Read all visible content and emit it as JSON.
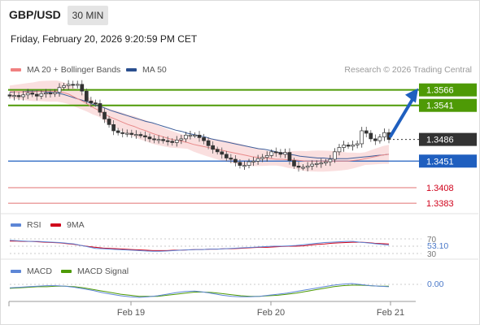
{
  "header": {
    "symbol": "GBP/USD",
    "timeframe": "30 MIN",
    "datetime": "Friday, February 20, 2026 9:20:59 PM CET"
  },
  "price_legend": {
    "ma20": "MA 20 + Bollinger Bands",
    "ma50": "MA 50",
    "copyright": "Research © 2026 Trading Central"
  },
  "rsi_legend": {
    "rsi": "RSI",
    "ma": "9MA"
  },
  "macd_legend": {
    "macd": "MACD",
    "signal": "MACD Signal"
  },
  "colors": {
    "green": "#4e9a06",
    "blue": "#1f5fbf",
    "red": "#d0021b",
    "dark": "#333333",
    "band": "#f6c9c9",
    "ma20": "#e88a8a",
    "ma50": "#3e5e9a",
    "rsi": "#5d86d6",
    "rsi_ma": "#d0021b",
    "macd": "#5d86d6",
    "macd_signal": "#4e9a06"
  },
  "chart_data": [
    {
      "type": "candlestick",
      "title": "GBP/USD",
      "timeframe": "30 MIN",
      "x_ticks": [
        "Feb 19",
        "Feb 20",
        "Feb 21"
      ],
      "ylim": [
        1.337,
        1.358
      ],
      "price_levels": [
        {
          "value": 1.3566,
          "label": "1.3566",
          "kind": "resistance"
        },
        {
          "value": 1.3541,
          "label": "1.3541",
          "kind": "resistance"
        },
        {
          "value": 1.3486,
          "label": "1.3486",
          "kind": "current"
        },
        {
          "value": 1.3451,
          "label": "1.3451",
          "kind": "pivot"
        },
        {
          "value": 1.3408,
          "label": "1.3408",
          "kind": "support"
        },
        {
          "value": 1.3383,
          "label": "1.3383",
          "kind": "support"
        }
      ],
      "series": [
        {
          "name": "Price",
          "values": [
            1.3556,
            1.3557,
            1.3555,
            1.3558,
            1.3561,
            1.3559,
            1.3556,
            1.356,
            1.3561,
            1.356,
            1.3562,
            1.357,
            1.3573,
            1.3575,
            1.3574,
            1.3575,
            1.3564,
            1.3548,
            1.3545,
            1.3544,
            1.353,
            1.3519,
            1.351,
            1.35,
            1.3497,
            1.3496,
            1.3496,
            1.3494,
            1.3494,
            1.3492,
            1.349,
            1.3487,
            1.3486,
            1.3486,
            1.3484,
            1.3483,
            1.3481,
            1.3485,
            1.3487,
            1.3493,
            1.3493,
            1.3493,
            1.3489,
            1.3484,
            1.3476,
            1.347,
            1.3466,
            1.3462,
            1.3456,
            1.3454,
            1.3449,
            1.3444,
            1.3444,
            1.345,
            1.3451,
            1.3455,
            1.3457,
            1.346,
            1.3466,
            1.3465,
            1.3462,
            1.3465,
            1.3452,
            1.3443,
            1.3441,
            1.3441,
            1.3443,
            1.3446,
            1.3447,
            1.3448,
            1.345,
            1.3454,
            1.3466,
            1.3473,
            1.3477,
            1.3475,
            1.3477,
            1.3479,
            1.35,
            1.3496,
            1.3487,
            1.3484,
            1.349,
            1.3497,
            1.3486
          ]
        },
        {
          "name": "MA 20",
          "values": [
            1.3563,
            1.3563,
            1.3563,
            1.3563,
            1.3563,
            1.3564,
            1.3564,
            1.3564,
            1.3564,
            1.3562,
            1.3559,
            1.3554,
            1.3549,
            1.3544,
            1.3538,
            1.3533,
            1.3527,
            1.3522,
            1.3518,
            1.3514,
            1.351,
            1.3507,
            1.3503,
            1.35,
            1.3496,
            1.3493,
            1.349,
            1.3487,
            1.3485,
            1.3483,
            1.3481,
            1.3478,
            1.3476,
            1.3474,
            1.3472,
            1.347,
            1.3468,
            1.3466,
            1.3464,
            1.3462,
            1.346,
            1.3458,
            1.3457,
            1.3456,
            1.3455,
            1.3454,
            1.3454,
            1.3453,
            1.3453,
            1.3452,
            1.3451,
            1.3451,
            1.3451,
            1.3451,
            1.3451,
            1.3451,
            1.3451,
            1.3451,
            1.3452,
            1.3453,
            1.3455,
            1.3457,
            1.3459,
            1.3461,
            1.3462
          ]
        },
        {
          "name": "MA 50",
          "values": [
            1.3562,
            1.3563,
            1.3563,
            1.3564,
            1.3564,
            1.3564,
            1.3563,
            1.3562,
            1.3561,
            1.3559,
            1.3556,
            1.3553,
            1.355,
            1.3547,
            1.3543,
            1.354,
            1.3537,
            1.3533,
            1.353,
            1.3527,
            1.3524,
            1.3521,
            1.3518,
            1.3515,
            1.3513,
            1.351,
            1.3507,
            1.3504,
            1.3501,
            1.3499,
            1.3496,
            1.3494,
            1.3492,
            1.349,
            1.3487,
            1.3485,
            1.3483,
            1.3481,
            1.3479,
            1.3477,
            1.3475,
            1.3473,
            1.3471,
            1.347,
            1.3468,
            1.3466,
            1.3464,
            1.3462,
            1.3461,
            1.3459,
            1.3458,
            1.3457,
            1.3456,
            1.3456,
            1.3455,
            1.3455,
            1.3455,
            1.3455,
            1.3456,
            1.3457,
            1.3458,
            1.3459,
            1.346,
            1.3461,
            1.3462
          ]
        }
      ]
    },
    {
      "type": "line",
      "title": "RSI",
      "ylim": [
        30,
        70
      ],
      "y_ticks": [
        "70",
        "30"
      ],
      "current_value": "53.10",
      "series": [
        {
          "name": "RSI",
          "values": [
            66,
            65,
            64,
            63,
            63,
            62,
            61,
            60,
            58,
            56,
            52,
            48,
            44,
            43,
            42,
            41,
            40,
            39,
            38,
            37,
            36,
            36,
            37,
            38,
            39,
            40,
            41,
            41,
            42,
            42,
            43,
            44,
            45,
            46,
            47,
            48,
            49,
            50,
            50,
            51,
            52,
            54,
            56,
            58,
            60,
            61,
            62,
            63,
            63,
            61,
            59,
            57,
            55,
            53.1
          ]
        },
        {
          "name": "9MA",
          "values": [
            64,
            64,
            63,
            63,
            62,
            61,
            60,
            59,
            57,
            55,
            52,
            49,
            47,
            45,
            44,
            43,
            42,
            41,
            40,
            39,
            38,
            38,
            38,
            39,
            39,
            40,
            41,
            41,
            42,
            42,
            43,
            43,
            44,
            45,
            46,
            47,
            47,
            48,
            49,
            50,
            50,
            51,
            53,
            55,
            56,
            58,
            59,
            60,
            61,
            61,
            60,
            58,
            57,
            56
          ]
        }
      ]
    },
    {
      "type": "line",
      "title": "MACD",
      "current_value": "0.00",
      "series": [
        {
          "name": "MACD",
          "values": [
            0.0006,
            0.0007,
            0.0008,
            0.0009,
            0.001,
            0.001,
            0.0009,
            0.0007,
            0.0004,
            0.0001,
            -0.0003,
            -0.0006,
            -0.0009,
            -0.0011,
            -0.0012,
            -0.0011,
            -0.0009,
            -0.0006,
            -0.0003,
            -0.0001,
            0.0,
            -0.0002,
            -0.0005,
            -0.0008,
            -0.001,
            -0.0011,
            -0.0011,
            -0.001,
            -0.0008,
            -0.0006,
            -0.0004,
            -0.0001,
            0.0002,
            0.0005,
            0.0008,
            0.0011,
            0.0013,
            0.0014,
            0.0012,
            0.001,
            0.0009,
            0.0008
          ]
        },
        {
          "name": "MACD Signal",
          "values": [
            0.0005,
            0.0006,
            0.0007,
            0.0008,
            0.0008,
            0.0009,
            0.0009,
            0.0008,
            0.0006,
            0.0003,
            0.0,
            -0.0003,
            -0.0006,
            -0.0008,
            -0.001,
            -0.001,
            -0.001,
            -0.0008,
            -0.0006,
            -0.0004,
            -0.0002,
            -0.0002,
            -0.0003,
            -0.0005,
            -0.0007,
            -0.0009,
            -0.001,
            -0.001,
            -0.0009,
            -0.0008,
            -0.0006,
            -0.0004,
            -0.0001,
            0.0002,
            0.0005,
            0.0008,
            0.001,
            0.0011,
            0.0011,
            0.001,
            0.0009,
            0.0009
          ]
        }
      ]
    }
  ]
}
